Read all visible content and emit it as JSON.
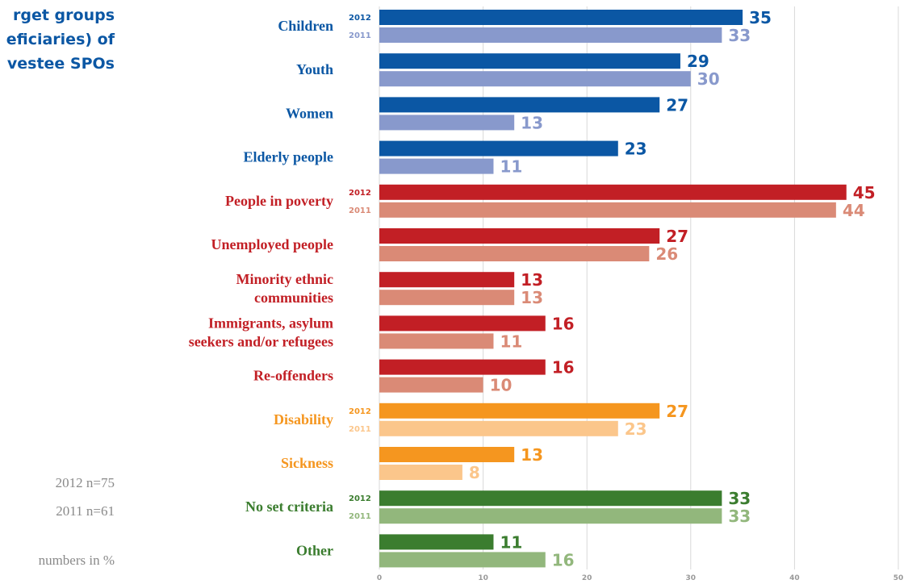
{
  "title_lines": [
    "rget groups",
    "eficiaries) of",
    "vestee SPOs"
  ],
  "notes": {
    "n2012": "2012 n=75",
    "n2011": "2011 n=61",
    "units": "numbers in %"
  },
  "colors": {
    "blue": [
      "#0b57a4",
      "#8899cc"
    ],
    "red": [
      "#c21f25",
      "#da8a76"
    ],
    "orange": [
      "#f5961f",
      "#fbc68b"
    ],
    "green": [
      "#3b7d2f",
      "#92b77c"
    ],
    "grid": "#d9d9d9"
  },
  "chart_data": {
    "type": "bar",
    "orientation": "horizontal",
    "title": "",
    "xlabel": "",
    "ylabel": "",
    "xlim": [
      0,
      50
    ],
    "ticks": [
      0,
      10,
      20,
      30,
      40,
      50
    ],
    "grid": true,
    "series_names": [
      "2012",
      "2011"
    ],
    "categories": [
      {
        "label": [
          "Children"
        ],
        "group": "blue",
        "v2012": 35,
        "v2011": 33,
        "tag2012": "2012",
        "tag2011": "2011"
      },
      {
        "label": [
          "Youth"
        ],
        "group": "blue",
        "v2012": 29,
        "v2011": 30
      },
      {
        "label": [
          "Women"
        ],
        "group": "blue",
        "v2012": 27,
        "v2011": 13
      },
      {
        "label": [
          "Elderly people"
        ],
        "group": "blue",
        "v2012": 23,
        "v2011": 11
      },
      {
        "label": [
          "People in poverty"
        ],
        "group": "red",
        "v2012": 45,
        "v2011": 44,
        "tag2012": "2012",
        "tag2011": "2011"
      },
      {
        "label": [
          "Unemployed people"
        ],
        "group": "red",
        "v2012": 27,
        "v2011": 26
      },
      {
        "label": [
          "Minority ethnic",
          "communities"
        ],
        "group": "red",
        "v2012": 13,
        "v2011": 13
      },
      {
        "label": [
          "Immigrants, asylum",
          "seekers and/or refugees"
        ],
        "group": "red",
        "v2012": 16,
        "v2011": 11
      },
      {
        "label": [
          "Re-offenders"
        ],
        "group": "red",
        "v2012": 16,
        "v2011": 10
      },
      {
        "label": [
          "Disability"
        ],
        "group": "orange",
        "v2012": 27,
        "v2011": 23,
        "tag2012": "2012",
        "tag2011": "2011"
      },
      {
        "label": [
          "Sickness"
        ],
        "group": "orange",
        "v2012": 13,
        "v2011": 8
      },
      {
        "label": [
          "No set criteria"
        ],
        "group": "green",
        "v2012": 33,
        "v2011": 33,
        "tag2012": "2012",
        "tag2011": "2011"
      },
      {
        "label": [
          "Other"
        ],
        "group": "green",
        "v2012": 11,
        "v2011": 16
      }
    ]
  }
}
